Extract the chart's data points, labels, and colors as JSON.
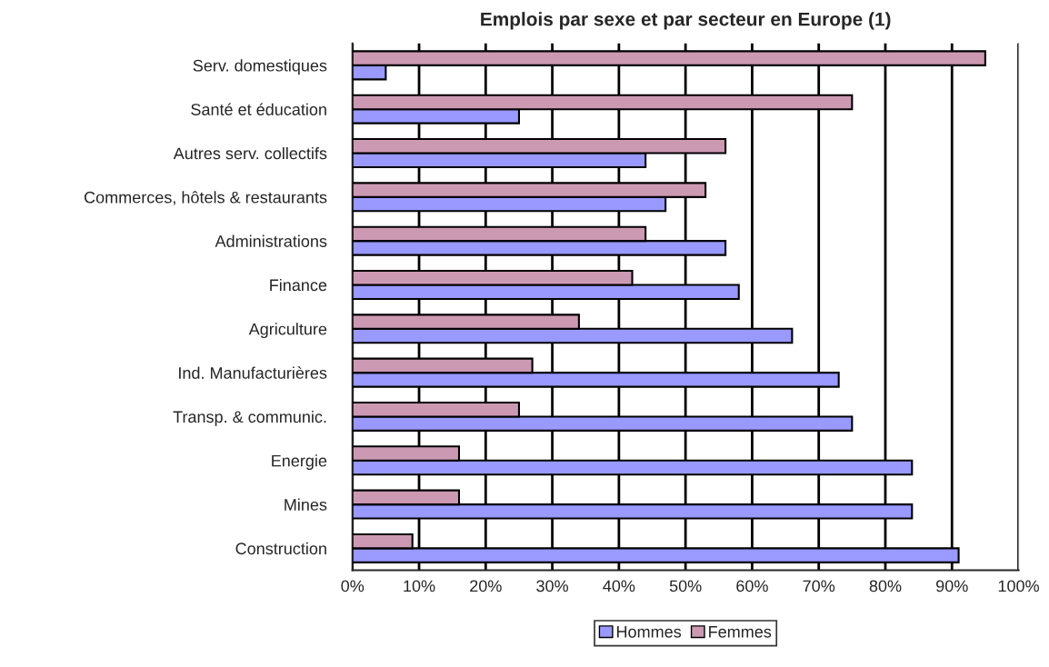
{
  "chart_data": {
    "type": "bar",
    "orientation": "horizontal",
    "title": "Emplois par sexe et par secteur en Europe (1)",
    "categories": [
      "Serv. domestiques",
      "Santé et éducation",
      "Autres serv. collectifs",
      "Commerces, hôtels & restaurants",
      "Administrations",
      "Finance",
      "Agriculture",
      "Ind. Manufacturières",
      "Transp. & communic.",
      "Energie",
      "Mines",
      "Construction"
    ],
    "series": [
      {
        "name": "Hommes",
        "color": "#9999ff",
        "values": [
          5,
          25,
          44,
          47,
          56,
          58,
          66,
          73,
          75,
          84,
          84,
          91
        ]
      },
      {
        "name": "Femmes",
        "color": "#cc99b3",
        "values": [
          95,
          75,
          56,
          53,
          44,
          42,
          34,
          27,
          25,
          16,
          16,
          9
        ]
      }
    ],
    "xlim": [
      0,
      100
    ],
    "xticks": [
      {
        "value": 0,
        "label": "0%"
      },
      {
        "value": 10,
        "label": "10%"
      },
      {
        "value": 20,
        "label": "20%"
      },
      {
        "value": 30,
        "label": "30%"
      },
      {
        "value": 40,
        "label": "40%"
      },
      {
        "value": 50,
        "label": "50%"
      },
      {
        "value": 60,
        "label": "60%"
      },
      {
        "value": 70,
        "label": "70%"
      },
      {
        "value": 80,
        "label": "80%"
      },
      {
        "value": 90,
        "label": "90%"
      },
      {
        "value": 100,
        "label": "100%"
      }
    ],
    "grid": "x",
    "legend": "bottom"
  }
}
